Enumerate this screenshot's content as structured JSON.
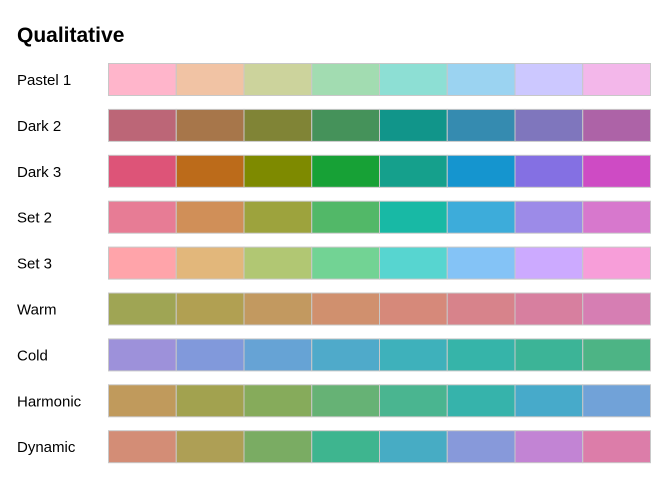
{
  "chart_data": {
    "type": "table",
    "title": "Qualitative",
    "swatch_border_color": "#c8c8c8",
    "rows": [
      {
        "label": "Pastel 1",
        "colors": [
          "#FFB5CB",
          "#F1C3A4",
          "#CCD39C",
          "#A2DCB1",
          "#8DDFD4",
          "#9BD3F1",
          "#CCC8FF",
          "#F3B7EA"
        ]
      },
      {
        "label": "Dark 2",
        "colors": [
          "#BC6677",
          "#A7764A",
          "#808436",
          "#45925A",
          "#11958A",
          "#358BB0",
          "#7F76BD",
          "#AD63A7"
        ]
      },
      {
        "label": "Dark 3",
        "colors": [
          "#DD5478",
          "#BC6B1A",
          "#7E8A00",
          "#17A136",
          "#15A08C",
          "#1595CF",
          "#8470E3",
          "#CE4BC4"
        ]
      },
      {
        "label": "Set 2",
        "colors": [
          "#E77C95",
          "#D08F58",
          "#9DA33D",
          "#52B868",
          "#18B9A5",
          "#3DACDA",
          "#9C8BE8",
          "#D778CD"
        ]
      },
      {
        "label": "Set 3",
        "colors": [
          "#FFA4AA",
          "#E2B77B",
          "#B1C773",
          "#72D394",
          "#57D5D0",
          "#84C3F6",
          "#CCAAFF",
          "#F79ED9"
        ]
      },
      {
        "label": "Warm",
        "colors": [
          "#9FA554",
          "#B1A052",
          "#C29960",
          "#D0906E",
          "#D6897A",
          "#D7838B",
          "#D77F9F",
          "#D67EB3"
        ]
      },
      {
        "label": "Cold",
        "colors": [
          "#9D91DA",
          "#8199DB",
          "#66A3D5",
          "#4FAACA",
          "#3EB1BB",
          "#36B4A9",
          "#3CB497",
          "#4DB485"
        ]
      },
      {
        "label": "Harmonic",
        "colors": [
          "#C09A5C",
          "#A2A24F",
          "#86AB5B",
          "#66B275",
          "#4AB590",
          "#36B3AB",
          "#47AACA",
          "#71A2D8"
        ]
      },
      {
        "label": "Dynamic",
        "colors": [
          "#D38D76",
          "#AE9F55",
          "#7AAC63",
          "#3EB58F",
          "#47ACC4",
          "#8799DA",
          "#C284D4",
          "#DC7DA9"
        ]
      }
    ]
  }
}
